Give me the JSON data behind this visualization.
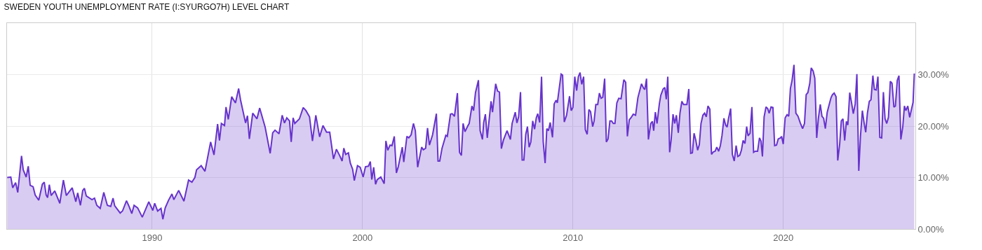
{
  "chart_data": {
    "type": "area",
    "title": "SWEDEN YOUTH UNEMPLOYMENT RATE (I:SYURGO7H) LEVEL CHART",
    "x": [
      1983.11,
      1983.28,
      1983.37,
      1983.51,
      1983.61,
      1983.79,
      1983.87,
      1984.01,
      1984.11,
      1984.2,
      1984.34,
      1984.44,
      1984.61,
      1984.78,
      1984.87,
      1984.96,
      1985.03,
      1985.11,
      1985.2,
      1985.37,
      1985.61,
      1985.78,
      1985.92,
      1986.2,
      1986.37,
      1986.46,
      1986.59,
      1986.7,
      1986.78,
      1986.87,
      1987.14,
      1987.26,
      1987.37,
      1987.53,
      1987.7,
      1987.87,
      1988.03,
      1988.14,
      1988.22,
      1988.48,
      1988.59,
      1988.78,
      1988.9,
      1989.03,
      1989.14,
      1989.31,
      1989.53,
      1989.84,
      1990.03,
      1990.12,
      1990.26,
      1990.42,
      1990.51,
      1990.62,
      1990.78,
      1990.94,
      1991.03,
      1991.26,
      1991.51,
      1991.73,
      1991.89,
      1992.03,
      1992.11,
      1992.33,
      1992.51,
      1992.78,
      1992.94,
      1993.11,
      1993.2,
      1993.29,
      1993.44,
      1993.51,
      1993.62,
      1993.78,
      1993.96,
      1994.11,
      1994.2,
      1994.44,
      1994.53,
      1994.62,
      1994.78,
      1994.98,
      1995.11,
      1995.37,
      1995.61,
      1995.73,
      1995.84,
      1996.03,
      1996.18,
      1996.29,
      1996.4,
      1996.53,
      1996.61,
      1996.7,
      1996.78,
      1997.0,
      1997.18,
      1997.31,
      1997.48,
      1997.62,
      1997.78,
      1997.96,
      1998.12,
      1998.29,
      1998.44,
      1998.62,
      1998.76,
      1998.92,
      1999.03,
      1999.11,
      1999.2,
      1999.33,
      1999.42,
      1999.53,
      1999.61,
      1999.76,
      1999.89,
      2000.03,
      2000.14,
      2000.28,
      2000.37,
      2000.44,
      2000.53,
      2000.62,
      2000.7,
      2000.87,
      2001.03,
      2001.11,
      2001.2,
      2001.31,
      2001.4,
      2001.51,
      2001.61,
      2001.7,
      2001.89,
      2001.96,
      2002.11,
      2002.2,
      2002.31,
      2002.42,
      2002.51,
      2002.62,
      2002.81,
      2002.89,
      2003.0,
      2003.09,
      2003.18,
      2003.33,
      2003.51,
      2003.59,
      2003.67,
      2003.78,
      2003.96,
      2004.03,
      2004.18,
      2004.26,
      2004.37,
      2004.51,
      2004.61,
      2004.7,
      2004.78,
      2004.87,
      2005.0,
      2005.07,
      2005.2,
      2005.28,
      2005.37,
      2005.51,
      2005.59,
      2005.7,
      2005.76,
      2005.84,
      2005.93,
      2006.11,
      2006.18,
      2006.33,
      2006.42,
      2006.51,
      2006.6,
      2006.7,
      2006.87,
      2007.03,
      2007.11,
      2007.26,
      2007.34,
      2007.42,
      2007.51,
      2007.59,
      2007.67,
      2007.76,
      2007.84,
      2007.92,
      2008.0,
      2008.09,
      2008.18,
      2008.26,
      2008.33,
      2008.42,
      2008.51,
      2008.59,
      2008.68,
      2008.76,
      2008.84,
      2008.92,
      2009.03,
      2009.11,
      2009.2,
      2009.26,
      2009.33,
      2009.44,
      2009.51,
      2009.59,
      2009.7,
      2009.84,
      2009.92,
      2010.0,
      2010.09,
      2010.18,
      2010.26,
      2010.34,
      2010.42,
      2010.51,
      2010.59,
      2010.68,
      2010.76,
      2010.84,
      2010.94,
      2011.01,
      2011.09,
      2011.18,
      2011.26,
      2011.34,
      2011.42,
      2011.51,
      2011.59,
      2011.67,
      2011.76,
      2011.84,
      2011.92,
      2012.0,
      2012.09,
      2012.18,
      2012.29,
      2012.42,
      2012.51,
      2012.59,
      2012.68,
      2012.76,
      2012.87,
      2012.98,
      2013.09,
      2013.26,
      2013.37,
      2013.42,
      2013.5,
      2013.59,
      2013.7,
      2013.78,
      2013.84,
      2013.92,
      2014.0,
      2014.11,
      2014.18,
      2014.29,
      2014.37,
      2014.44,
      2014.51,
      2014.6,
      2014.67,
      2014.76,
      2014.84,
      2014.92,
      2015.01,
      2015.09,
      2015.18,
      2015.26,
      2015.42,
      2015.51,
      2015.6,
      2015.68,
      2015.76,
      2015.84,
      2015.93,
      2016.01,
      2016.09,
      2016.18,
      2016.26,
      2016.34,
      2016.42,
      2016.51,
      2016.59,
      2016.68,
      2016.76,
      2016.84,
      2016.93,
      2017.01,
      2017.09,
      2017.18,
      2017.26,
      2017.33,
      2017.4,
      2017.5,
      2017.58,
      2017.67,
      2017.76,
      2017.84,
      2017.93,
      2018.01,
      2018.09,
      2018.18,
      2018.26,
      2018.33,
      2018.42,
      2018.51,
      2018.59,
      2018.67,
      2018.78,
      2018.87,
      2018.94,
      2019.01,
      2019.09,
      2019.18,
      2019.26,
      2019.33,
      2019.42,
      2019.51,
      2019.59,
      2019.68,
      2019.76,
      2019.87,
      2019.92,
      2020.0,
      2020.09,
      2020.18,
      2020.26,
      2020.34,
      2020.42,
      2020.51,
      2020.6,
      2020.7,
      2020.81,
      2020.92,
      2021.01,
      2021.09,
      2021.17,
      2021.26,
      2021.33,
      2021.42,
      2021.5,
      2021.59,
      2021.67,
      2021.76,
      2021.84,
      2021.92,
      2022.0,
      2022.09,
      2022.18,
      2022.27,
      2022.34,
      2022.42,
      2022.51,
      2022.59,
      2022.68,
      2022.76,
      2022.84,
      2022.92,
      2023.0,
      2023.07,
      2023.16,
      2023.24,
      2023.33,
      2023.42,
      2023.5,
      2023.59,
      2023.67,
      2023.76,
      2023.84,
      2023.92,
      2024.0,
      2024.09,
      2024.17,
      2024.26,
      2024.33,
      2024.42,
      2024.5,
      2024.59,
      2024.68,
      2024.76,
      2024.84,
      2024.92,
      2025.0,
      2025.09,
      2025.17,
      2025.26,
      2025.33,
      2025.42,
      2025.5,
      2025.59,
      2025.68,
      2025.76,
      2025.83,
      2025.92,
      2026.01,
      2026.17,
      2026.23
    ],
    "series": [
      {
        "color": "#6633cc",
        "values": [
          10.0,
          10.1,
          8.0,
          9.0,
          7.1,
          14.2,
          11.5,
          10.1,
          12.2,
          8.5,
          8.2,
          6.6,
          5.6,
          8.7,
          9.1,
          6.6,
          6.1,
          8.6,
          6.5,
          7.4,
          5.0,
          9.5,
          6.5,
          8.0,
          5.3,
          7.0,
          4.6,
          7.5,
          7.9,
          6.4,
          5.7,
          6.0,
          4.6,
          4.0,
          7.1,
          4.6,
          4.4,
          6.0,
          4.5,
          3.1,
          3.5,
          5.5,
          4.4,
          3.0,
          4.6,
          4.1,
          2.3,
          5.3,
          3.6,
          5.0,
          3.5,
          4.0,
          1.9,
          4.1,
          5.6,
          6.8,
          5.7,
          7.5,
          5.4,
          9.5,
          9.1,
          10.0,
          11.5,
          12.3,
          11.2,
          16.9,
          14.4,
          20.4,
          17.2,
          20.5,
          20.1,
          23.7,
          21.3,
          25.7,
          24.5,
          27.3,
          25.1,
          20.6,
          22.0,
          17.5,
          22.5,
          21.4,
          23.5,
          19.8,
          14.7,
          18.7,
          19.2,
          18.5,
          22.1,
          20.6,
          21.6,
          21.0,
          16.9,
          21.6,
          20.5,
          21.4,
          23.6,
          23.0,
          21.8,
          17.1,
          22.1,
          17.9,
          20.1,
          18.8,
          18.8,
          13.6,
          15.5,
          14.2,
          13.2,
          15.7,
          14.5,
          14.8,
          12.8,
          11.6,
          9.4,
          12.3,
          12.0,
          10.1,
          12.1,
          12.2,
          13.1,
          9.6,
          12.0,
          8.7,
          9.6,
          10.1,
          8.8,
          17.1,
          15.3,
          16.3,
          16.2,
          18.0,
          10.9,
          12.1,
          15.9,
          13.0,
          18.0,
          17.7,
          18.3,
          20.5,
          19.1,
          12.0,
          15.9,
          15.4,
          15.7,
          19.6,
          16.3,
          18.3,
          22.4,
          13.2,
          13.2,
          15.7,
          18.2,
          18.0,
          22.3,
          22.4,
          21.9,
          26.4,
          14.9,
          14.3,
          20.5,
          18.9,
          20.0,
          20.5,
          23.9,
          23.0,
          26.5,
          28.9,
          19.1,
          17.4,
          20.7,
          22.3,
          17.7,
          24.8,
          22.7,
          28.2,
          26.8,
          26.6,
          15.6,
          17.3,
          19.1,
          17.4,
          20.5,
          22.7,
          20.6,
          21.8,
          26.6,
          13.4,
          13.4,
          18.4,
          19.9,
          15.9,
          16.9,
          21.0,
          19.4,
          21.6,
          22.4,
          20.7,
          29.6,
          16.9,
          12.8,
          19.5,
          19.1,
          20.7,
          17.8,
          24.3,
          25.0,
          24.5,
          26.7,
          30.1,
          29.9,
          20.8,
          22.1,
          25.8,
          23.0,
          23.6,
          29.6,
          26.9,
          29.6,
          30.4,
          28.1,
          29.6,
          19.3,
          18.4,
          23.2,
          22.8,
          19.9,
          21.0,
          24.2,
          24.2,
          26.4,
          25.4,
          25.6,
          29.2,
          16.9,
          17.5,
          21.0,
          21.0,
          20.5,
          20.5,
          24.5,
          25.4,
          25.3,
          29.0,
          28.5,
          18.0,
          21.2,
          21.6,
          22.3,
          22.1,
          25.5,
          28.2,
          27.3,
          27.1,
          29.2,
          17.4,
          20.5,
          20.9,
          19.1,
          22.7,
          20.5,
          24.3,
          26.0,
          27.2,
          27.5,
          25.2,
          29.6,
          14.9,
          17.3,
          22.3,
          20.5,
          22.1,
          18.7,
          22.5,
          24.8,
          24.2,
          24.2,
          27.2,
          14.7,
          14.8,
          18.6,
          17.3,
          15.3,
          16.4,
          20.5,
          22.1,
          22.5,
          21.8,
          23.9,
          23.3,
          14.5,
          15.0,
          15.1,
          15.9,
          15.1,
          16.2,
          18.2,
          21.5,
          20.2,
          19.8,
          21.5,
          23.4,
          14.5,
          13.2,
          16.2,
          14.1,
          14.3,
          15.3,
          17.2,
          16.6,
          19.9,
          18.1,
          18.6,
          23.7,
          14.9,
          15.1,
          15.1,
          17.7,
          17.1,
          14.1,
          21.8,
          23.7,
          23.4,
          22.5,
          23.7,
          23.6,
          16.2,
          16.3,
          17.5,
          17.7,
          18.0,
          16.5,
          21.6,
          22.2,
          21.9,
          27.3,
          28.9,
          31.9,
          22.5,
          21.9,
          20.6,
          19.5,
          20.5,
          26.1,
          26.5,
          28.3,
          31.3,
          30.7,
          29.3,
          17.7,
          21.5,
          24.2,
          21.9,
          21.5,
          19.5,
          22.7,
          24.1,
          25.5,
          26.1,
          26.4,
          25.7,
          13.3,
          16.4,
          21.0,
          21.4,
          17.2,
          20.9,
          20.2,
          26.5,
          24.7,
          22.4,
          24.3,
          30.1,
          11.3,
          18.0,
          23.0,
          20.7,
          18.8,
          22.5,
          24.8,
          25.1,
          29.8,
          27.1,
          27.0,
          29.6,
          17.8,
          17.7,
          26.6,
          21.4,
          20.5,
          21.7,
          28.7,
          28.3,
          23.7,
          23.9,
          28.9,
          29.8,
          17.4,
          19.8,
          23.9,
          23.0,
          23.9,
          21.7,
          24.6,
          30.2
        ]
      }
    ],
    "xlim": [
      1983.1,
      2026.28
    ],
    "xticks": [
      1990,
      2000,
      2010,
      2020
    ],
    "ylim": [
      0,
      40
    ],
    "yticks": [
      {
        "value": 0,
        "label": "0.00%"
      },
      {
        "value": 10,
        "label": "10.00%"
      },
      {
        "value": 20,
        "label": "20.00%"
      },
      {
        "value": 30,
        "label": "30.00%"
      }
    ],
    "grid": true
  }
}
